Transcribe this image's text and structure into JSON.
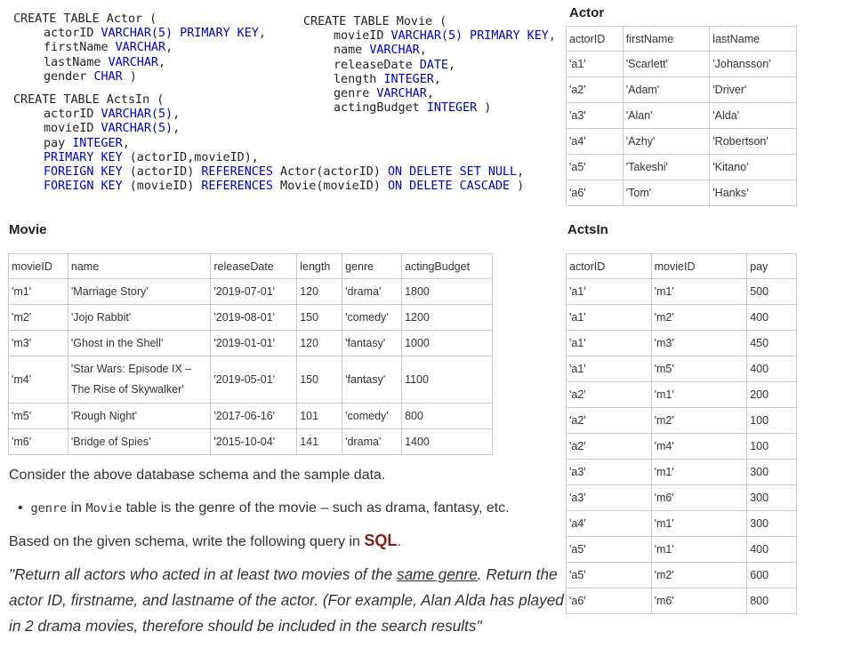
{
  "schema": {
    "actor_lines": [
      {
        "pre": "CREATE TABLE Actor (",
        "kw": "",
        "post": ""
      },
      {
        "pre": "actorID ",
        "kw": "VARCHAR(5) PRIMARY KEY",
        "post": ","
      },
      {
        "pre": "firstName ",
        "kw": "VARCHAR",
        "post": ","
      },
      {
        "pre": "lastName ",
        "kw": "VARCHAR",
        "post": ","
      },
      {
        "pre": "gender ",
        "kw": "CHAR",
        "post": " )"
      }
    ],
    "movie_lines": [
      {
        "pre": "CREATE TABLE Movie (",
        "kw": "",
        "post": ""
      },
      {
        "pre": "movieID ",
        "kw": "VARCHAR(5) PRIMARY KEY",
        "post": ","
      },
      {
        "pre": "name ",
        "kw": "VARCHAR",
        "post": ","
      },
      {
        "pre": "releaseDate ",
        "kw": "DATE",
        "post": ","
      },
      {
        "pre": "length ",
        "kw": "INTEGER",
        "post": ","
      },
      {
        "pre": "genre ",
        "kw": "VARCHAR",
        "post": ","
      },
      {
        "pre": "actingBudget ",
        "kw": "INTEGER",
        "post": " )"
      }
    ],
    "actsin_lines": [
      {
        "pre": "CREATE TABLE ActsIn (",
        "kw": "",
        "post": ""
      },
      {
        "pre": "actorID ",
        "kw": "VARCHAR(5)",
        "post": ","
      },
      {
        "pre": "movieID ",
        "kw": "VARCHAR(5)",
        "post": ","
      },
      {
        "pre": "pay ",
        "kw": "INTEGER",
        "post": ","
      },
      {
        "pre": "",
        "kw": "PRIMARY KEY",
        "post": " (actorID,movieID),"
      },
      {
        "pre": "",
        "kw": "FOREIGN KEY",
        "post": " (actorID) ",
        "kw2": "REFERENCES",
        "post2": " Actor(actorID) ",
        "kw3": "ON DELETE SET NULL",
        "post3": ","
      },
      {
        "pre": "",
        "kw": "FOREIGN KEY",
        "post": " (movieID) ",
        "kw2": "REFERENCES",
        "post2": " Movie(movieID) ",
        "kw3": "ON DELETE CASCADE",
        "post3": " )"
      }
    ]
  },
  "actor_table": {
    "caption": "Actor",
    "headers": [
      "actorID",
      "firstName",
      "lastName"
    ],
    "rows": [
      [
        "'a1'",
        "'Scarlett'",
        "'Johansson'"
      ],
      [
        "'a2'",
        "'Adam'",
        "'Driver'"
      ],
      [
        "'a3'",
        "'Alan'",
        "'Alda'"
      ],
      [
        "'a4'",
        "'Azhy'",
        "'Robertson'"
      ],
      [
        "'a5'",
        "'Takeshi'",
        "'Kitano'"
      ],
      [
        "'a6'",
        "'Tom'",
        "'Hanks'"
      ]
    ]
  },
  "movie_table": {
    "caption": "Movie",
    "headers": [
      "movieID",
      "name",
      "releaseDate",
      "length",
      "genre",
      "actingBudget"
    ],
    "rows": [
      [
        "'m1'",
        "'Marriage Story'",
        "'2019-07-01'",
        "120",
        "'drama'",
        "1800"
      ],
      [
        "'m2'",
        "'Jojo Rabbit'",
        "'2019-08-01'",
        "150",
        "'comedy'",
        "1200"
      ],
      [
        "'m3'",
        "'Ghost in the Shell'",
        "'2019-01-01'",
        "120",
        "'fantasy'",
        "1000"
      ],
      [
        "'m4'",
        "'Star Wars: Episode IX – The Rise of Skywalker'",
        "'2019-05-01'",
        "150",
        "'fantasy'",
        "1100"
      ],
      [
        "'m5'",
        "'Rough Night'",
        "'2017-06-16'",
        "101",
        "'comedy'",
        "800"
      ],
      [
        "'m6'",
        "'Bridge of Spies'",
        "'2015-10-04'",
        "141",
        "'drama'",
        "1400"
      ]
    ]
  },
  "actsin_table": {
    "caption": "ActsIn",
    "headers": [
      "actorID",
      "movieID",
      "pay"
    ],
    "rows": [
      [
        "'a1'",
        "'m1'",
        "500"
      ],
      [
        "'a1'",
        "'m2'",
        "400"
      ],
      [
        "'a1'",
        "'m3'",
        "450"
      ],
      [
        "'a1'",
        "'m5'",
        "400"
      ],
      [
        "'a2'",
        "'m1'",
        "200"
      ],
      [
        "'a2'",
        "'m2'",
        "100"
      ],
      [
        "'a2'",
        "'m4'",
        "100"
      ],
      [
        "'a3'",
        "'m1'",
        "300"
      ],
      [
        "'a3'",
        "'m6'",
        "300"
      ],
      [
        "'a4'",
        "'m1'",
        "300"
      ],
      [
        "'a5'",
        "'m1'",
        "400"
      ],
      [
        "'a5'",
        "'m2'",
        "600"
      ],
      [
        "'a6'",
        "'m6'",
        "800"
      ]
    ]
  },
  "text": {
    "consider": "Consider the above database schema and the sample data.",
    "bullet_code1": "genre",
    "bullet_mid": " in ",
    "bullet_code2": "Movie",
    "bullet_rest": " table is the genre of the movie – such as drama, fantasy, etc.",
    "based_on": "Based on the given schema, write the following query in ",
    "sql": "SQL",
    "period": ".",
    "q_part1": "\"Return all actors who acted in at least two movies of the ",
    "q_underline": "same genre",
    "q_part2": ". Return the actor ID, firstname, and lastname of the actor. (For example, Alan Alda has played in 2 drama movies, therefore should be included in the search results\""
  }
}
